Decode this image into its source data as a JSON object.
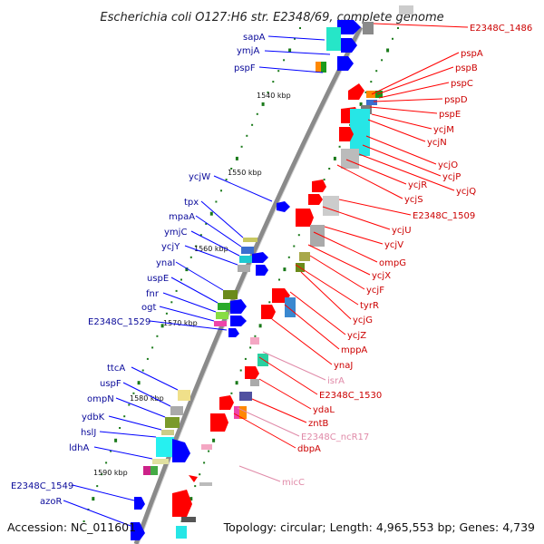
{
  "title": "Escherichia coli O127:H6 str. E2348/69, complete genome",
  "footer": {
    "accession": "Accession: NC_011601",
    "stats": "Topology: circular; Length: 4,965,553 bp; Genes: 4,739"
  },
  "kbp_marks": [
    "1540 kbp",
    "1550 kbp",
    "1560 kbp",
    "1570 kbp",
    "1580 kbp",
    "1590 kbp"
  ],
  "left_labels": [
    "sapA",
    "ymjA",
    "pspF",
    "ycjW",
    "tpx",
    "mpaA",
    "ymjC",
    "ycjY",
    "ynaI",
    "uspE",
    "fnr",
    "ogt",
    "E2348C_1529",
    "ttcA",
    "uspF",
    "ompN",
    "ydbK",
    "hslJ",
    "ldhA",
    "E2348C_1549",
    "azoR"
  ],
  "right_labels": [
    "E2348C_1486",
    "pspA",
    "pspB",
    "pspC",
    "pspD",
    "pspE",
    "ycjM",
    "ycjN",
    "ycjO",
    "ycjP",
    "ycjQ",
    "ycjR",
    "ycjS",
    "E2348C_1509",
    "ycjU",
    "ycjV",
    "ompG",
    "ycjX",
    "ycjF",
    "tyrR",
    "ycjG",
    "ycjZ",
    "mppA",
    "ynaJ",
    "E2348C_1530",
    "ydaL",
    "zntB",
    "dbpA"
  ],
  "pink_labels": [
    "isrA",
    "E2348C_ncR17",
    "micC"
  ],
  "colors": {
    "forward": "#0000ff",
    "reverse": "#ff0000",
    "rna": "#f4a7c3",
    "backbone": "#8a8a8a",
    "ticks": "#1a7a1a"
  }
}
